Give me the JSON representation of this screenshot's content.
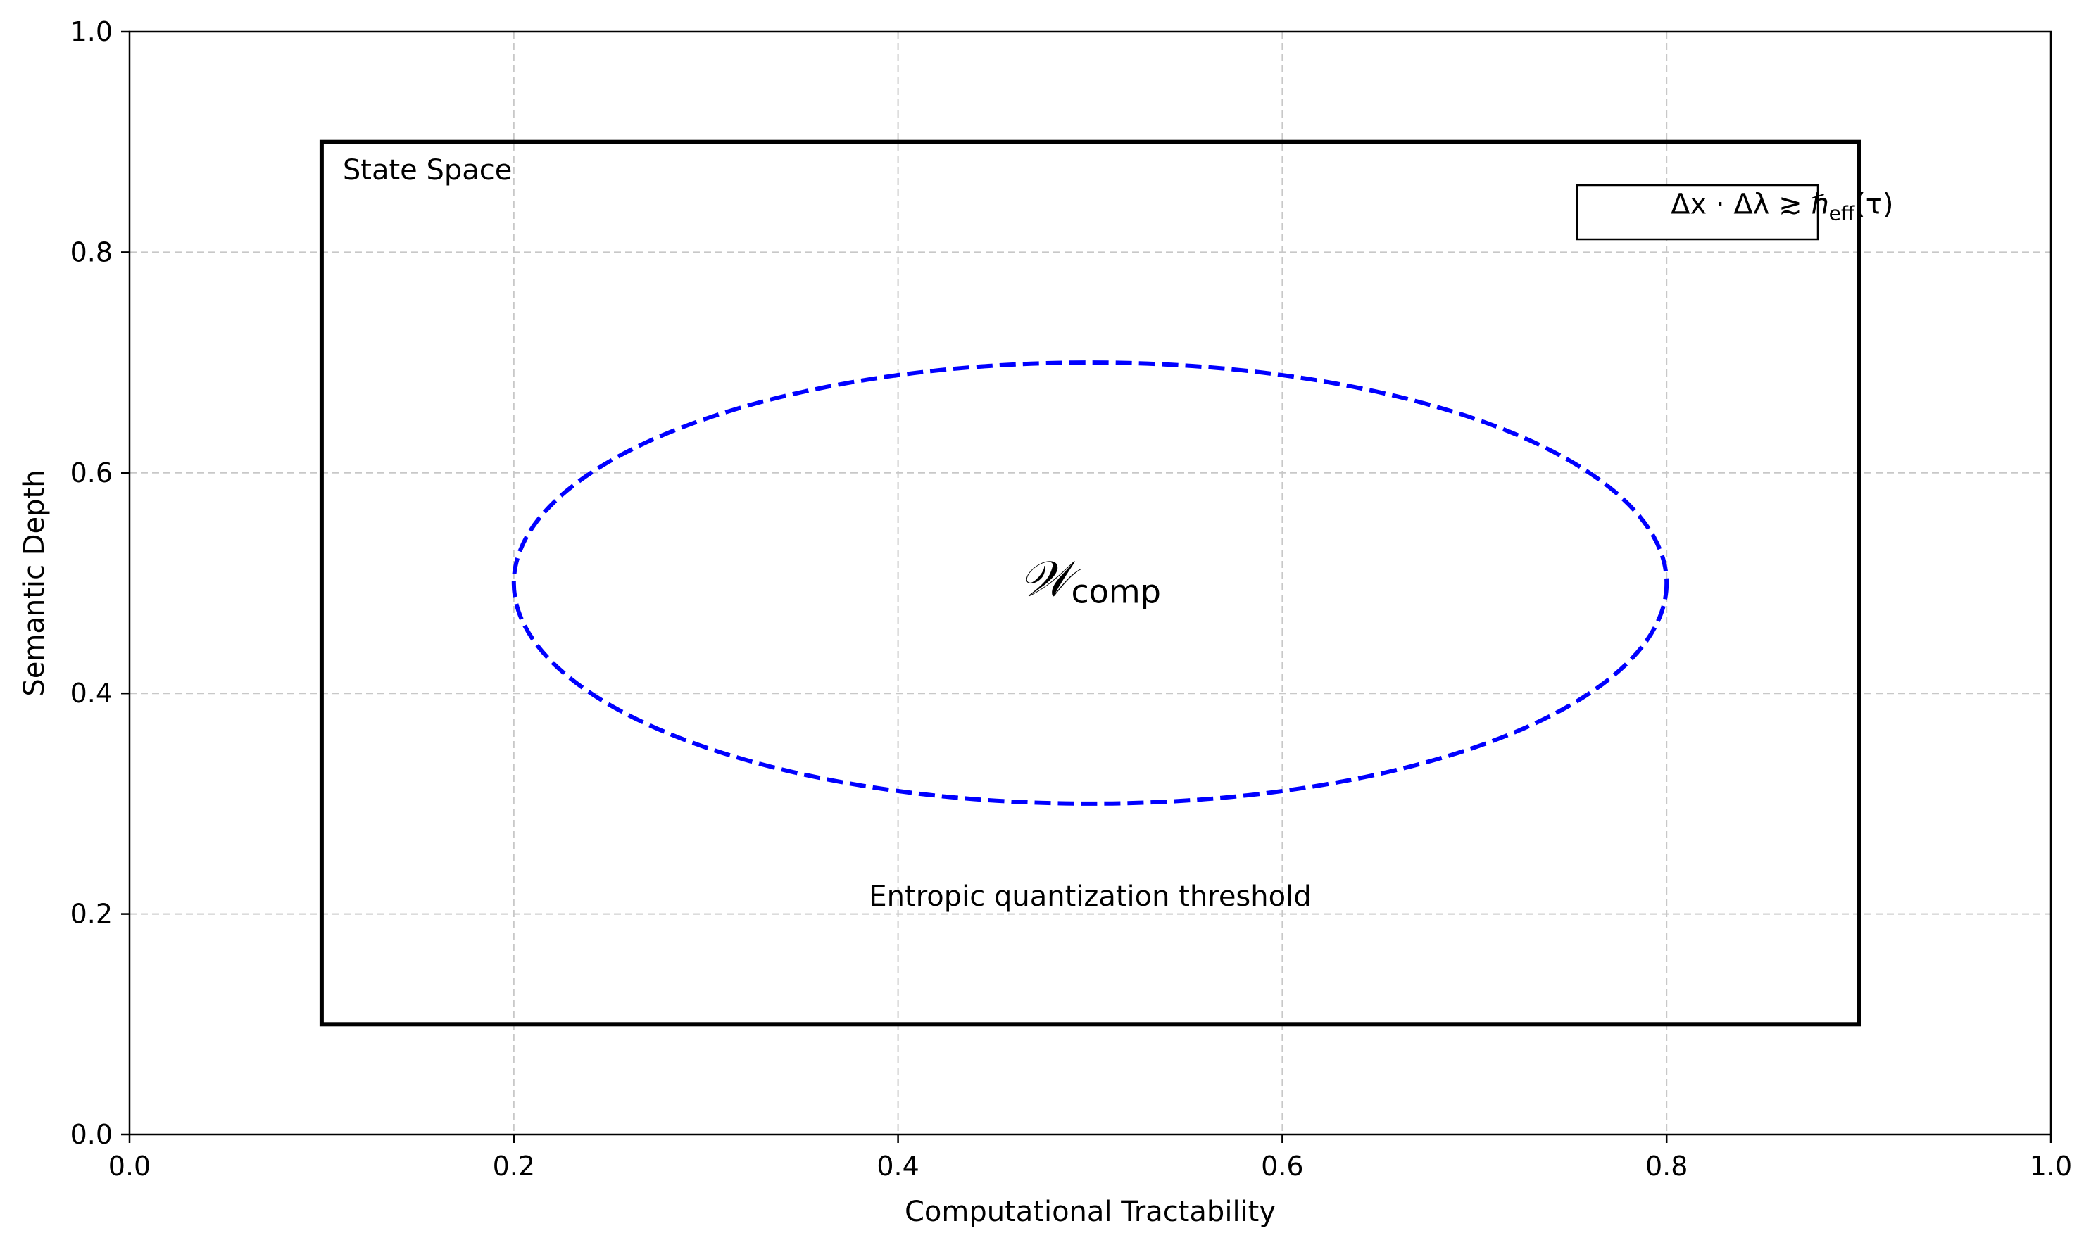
{
  "chart_data": {
    "type": "scatter",
    "title": "",
    "xlabel": "Computational Tractability",
    "ylabel": "Semantic Depth",
    "xlim": [
      0.0,
      1.0
    ],
    "ylim": [
      0.0,
      1.0
    ],
    "xticks": [
      "0.0",
      "0.2",
      "0.4",
      "0.6",
      "0.8",
      "1.0"
    ],
    "yticks": [
      "0.0",
      "0.2",
      "0.4",
      "0.6",
      "0.8",
      "1.0"
    ],
    "xtick_values": [
      0.0,
      0.2,
      0.4,
      0.6,
      0.8,
      1.0
    ],
    "ytick_values": [
      0.0,
      0.2,
      0.4,
      0.6,
      0.8,
      1.0
    ],
    "grid": true,
    "grid_style": "dashed",
    "shapes": [
      {
        "kind": "rectangle",
        "x0": 0.1,
        "y0": 0.1,
        "x1": 0.9,
        "y1": 0.9,
        "color": "#000000",
        "line": "solid",
        "label": "State Space"
      },
      {
        "kind": "ellipse",
        "center": [
          0.5,
          0.5
        ],
        "x_radius": 0.3,
        "y_radius": 0.2,
        "color": "#0000ff",
        "line": "dashed"
      }
    ],
    "annotations": {
      "state_space": "State Space",
      "relation": "Δx · Δλ ≳ ℏ_eff(τ)",
      "relation_parts": {
        "lhs": "Δx · Δλ ≳ ℏ",
        "sub": "eff",
        "rhs": "(τ)"
      },
      "window": "𝒲_comp",
      "window_parts": {
        "symbol": "𝒲",
        "sub": "comp"
      },
      "threshold": "Entropic quantization threshold"
    },
    "annotation_positions": {
      "state_space": [
        0.111,
        0.866
      ],
      "relation": [
        0.818,
        0.835
      ],
      "window": [
        0.5,
        0.5
      ],
      "threshold": [
        0.5,
        0.215
      ]
    }
  }
}
